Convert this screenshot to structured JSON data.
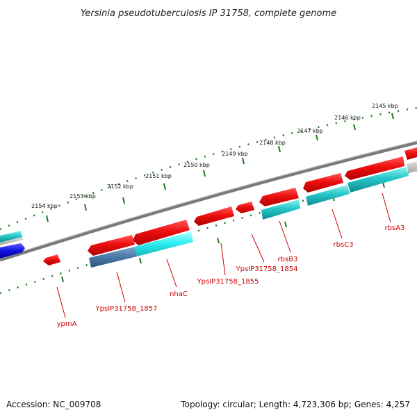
{
  "title": "Yersinia pseudotuberculosis IP 31758, complete genome",
  "accession": "Accession: NC_009708",
  "summary": "Topology: circular; Length: 4,723,306 bp; Genes: 4,257",
  "colors": {
    "backbone": "#7a7a7a",
    "ticks": "#1a7a1a",
    "gene_red": "#e81010",
    "gene_cyan": "#22c4c8",
    "gene_steel": "#4a78a8",
    "gene_blue": "#1010e0",
    "label": "#cc0000"
  },
  "ticks": [
    "2145 kbp",
    "2146 kbp",
    "2147 kbp",
    "2148 kbp",
    "2149 kbp",
    "2150 kbp",
    "2151 kbp",
    "2152 kbp",
    "2153 kbp",
    "2154 kbp"
  ],
  "gene_labels": [
    "rbsA3",
    "rbsC3",
    "rbsB3",
    "YpsIP31758_1854",
    "YpsIP31758_1855",
    "nhaC",
    "YpsIP31758_1857",
    "ypmA"
  ]
}
